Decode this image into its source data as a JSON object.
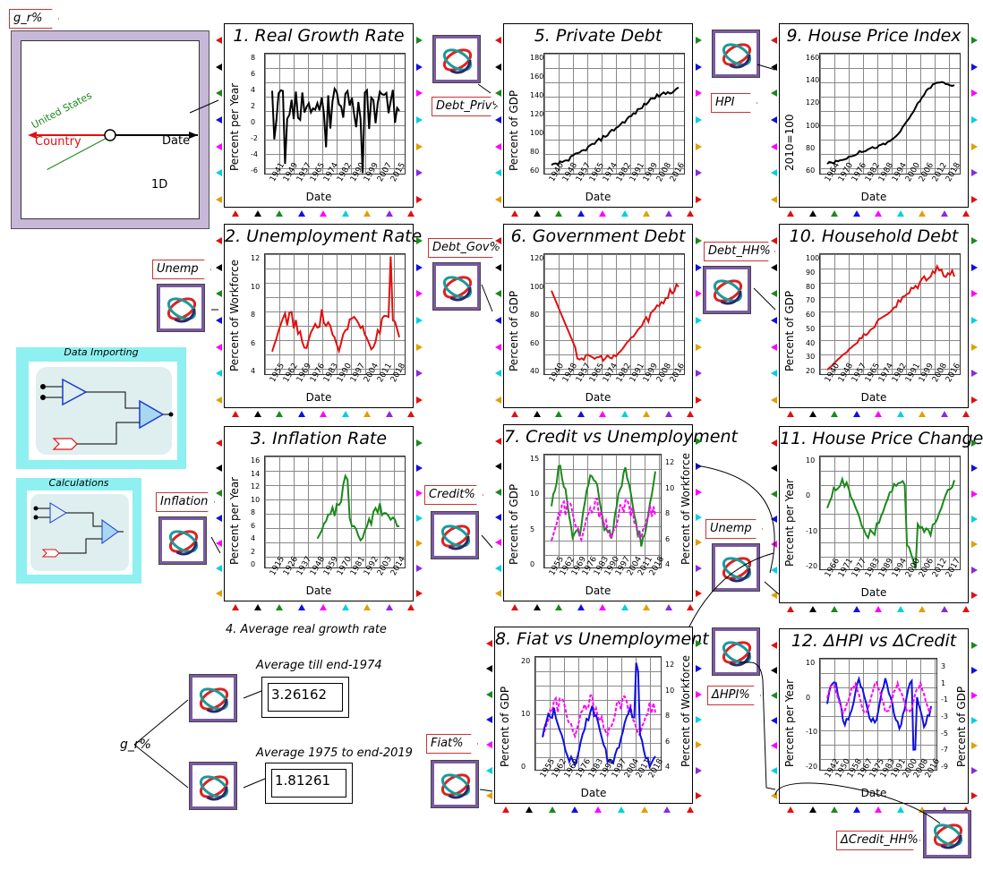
{
  "colors": {
    "black": "#000000",
    "red": "#e01010",
    "green": "#1a8a1a",
    "magenta": "#ff00ff",
    "blue": "#1010e0",
    "purple": "#7a5aa0",
    "cyan": "#8ef0f0"
  },
  "left_panel": {
    "flag": "g_r%",
    "axis_y_label": "United States",
    "axis_x_label": "Date",
    "country_label": "Country",
    "dimension_label": "1D"
  },
  "groups": [
    {
      "title": "Data Importing"
    },
    {
      "title": "Calculations"
    }
  ],
  "flags": {
    "debt_priv": "Debt_Priv%",
    "hpi": "HPI",
    "unemp": "Unemp",
    "debt_gov": "Debt_Gov%",
    "debt_hh": "Debt_HH%",
    "inflation": "Inflation",
    "credit": "Credit%",
    "unemp2": "Unemp",
    "dhpi": "ΔHPI%",
    "fiat": "Fiat%",
    "dcredit_hh": "ΔCredit_HH%",
    "gr": "g_r%"
  },
  "panels": [
    {
      "title": "1. Real Growth Rate",
      "ylabel": "Percent per Year",
      "xlabel": "Date",
      "yticks": [
        "8",
        "6",
        "4",
        "2",
        "0",
        "-2",
        "-4",
        "-6"
      ],
      "xticks": [
        "1941",
        "1949",
        "1957",
        "1965",
        "1974",
        "1982",
        "1990",
        "1999",
        "2007",
        "2015"
      ]
    },
    {
      "title": "2. Unemployment Rate",
      "ylabel": "Percent of Workforce",
      "xlabel": "Date",
      "yticks": [
        "12",
        "10",
        "8",
        "6",
        "4"
      ],
      "xticks": [
        "1955",
        "1962",
        "1969",
        "1976",
        "1983",
        "1990",
        "1997",
        "2004",
        "2011",
        "2018"
      ]
    },
    {
      "title": "3. Inflation Rate",
      "ylabel": "Percent per Year",
      "xlabel": "Date",
      "yticks": [
        "16",
        "14",
        "12",
        "10",
        "8",
        "6",
        "4",
        "2",
        "0"
      ],
      "xticks": [
        "1915",
        "1926",
        "1937",
        "1948",
        "1959",
        "1970",
        "1981",
        "1992",
        "2003",
        "2014"
      ]
    },
    {
      "title": "5. Private Debt",
      "ylabel": "Percent of GDP",
      "xlabel": "Date",
      "yticks": [
        "180",
        "160",
        "140",
        "120",
        "100",
        "80",
        "60"
      ],
      "xticks": [
        "1940",
        "1948",
        "1957",
        "1965",
        "1974",
        "1982",
        "1991",
        "1999",
        "2008",
        "2016"
      ]
    },
    {
      "title": "6. Government Debt",
      "ylabel": "Percent of GDP",
      "xlabel": "Date",
      "yticks": [
        "120",
        "100",
        "80",
        "60",
        "40"
      ],
      "xticks": [
        "1940",
        "1948",
        "1957",
        "1965",
        "1974",
        "1982",
        "1991",
        "1999",
        "2008",
        "2016"
      ]
    },
    {
      "title": "7. Credit vs Unemployment",
      "ylabel": "Percent of GDP",
      "ylabel2": "Percent of Workforce",
      "xlabel": "Date",
      "yticks": [
        "15",
        "10",
        "5",
        "0"
      ],
      "yticks2": [
        "12",
        "10",
        "8",
        "6",
        "4"
      ],
      "xticks": [
        "1955",
        "1962",
        "1969",
        "1976",
        "1983",
        "1990",
        "1997",
        "2004",
        "2011",
        "2018"
      ]
    },
    {
      "title": "8. Fiat vs Unemployment",
      "ylabel": "Percent of GDP",
      "ylabel2": "Percent of Workforce",
      "xlabel": "Date",
      "yticks": [
        "20",
        "10",
        "0"
      ],
      "yticks2": [
        "12",
        "10",
        "8",
        "6",
        "4"
      ],
      "xticks": [
        "1955",
        "1962",
        "1969",
        "1976",
        "1983",
        "1990",
        "1997",
        "2004",
        "2011",
        "2018"
      ]
    },
    {
      "title": "9. House Price Index",
      "ylabel": "2010=100",
      "xlabel": "Date",
      "yticks": [
        "160",
        "140",
        "120",
        "100",
        "80",
        "60"
      ],
      "xticks": [
        "1964",
        "1970",
        "1976",
        "1982",
        "1988",
        "1994",
        "2000",
        "2006",
        "2012",
        "2018"
      ]
    },
    {
      "title": "10. Household Debt",
      "ylabel": "Percent of GDP",
      "xlabel": "Date",
      "yticks": [
        "100",
        "90",
        "80",
        "70",
        "60",
        "50",
        "40",
        "30",
        "20"
      ],
      "xticks": [
        "1940",
        "1948",
        "1957",
        "1965",
        "1974",
        "1982",
        "1991",
        "1999",
        "2008",
        "2016"
      ]
    },
    {
      "title": "11. House Price Change",
      "ylabel": "Percent per Year",
      "xlabel": "Date",
      "yticks": [
        "10",
        "0",
        "-10",
        "-20"
      ],
      "xticks": [
        "1966",
        "1971",
        "1977",
        "1983",
        "1989",
        "1994",
        "2000",
        "2006",
        "2012",
        "2017"
      ]
    },
    {
      "title": "12. ΔHPI vs ΔCredit",
      "ylabel": "Percent per Year",
      "ylabel2": "Percent of GDP",
      "xlabel": "Date",
      "yticks": [
        "10",
        "0",
        "-10",
        "-20"
      ],
      "yticks2": [
        "3",
        "1",
        "-1",
        "-3",
        "-5",
        "-7",
        "-9"
      ],
      "xticks": [
        "1942",
        "1950",
        "1958",
        "1967",
        "1975",
        "1983",
        "1991",
        "2000",
        "2008",
        "2016"
      ]
    }
  ],
  "average": {
    "title": "4. Average real growth rate",
    "label1": "Average till end-1974",
    "value1": "3.26162",
    "label2": "Average 1975 to end-2019",
    "value2": "1.81261",
    "input": "g_r%"
  }
}
